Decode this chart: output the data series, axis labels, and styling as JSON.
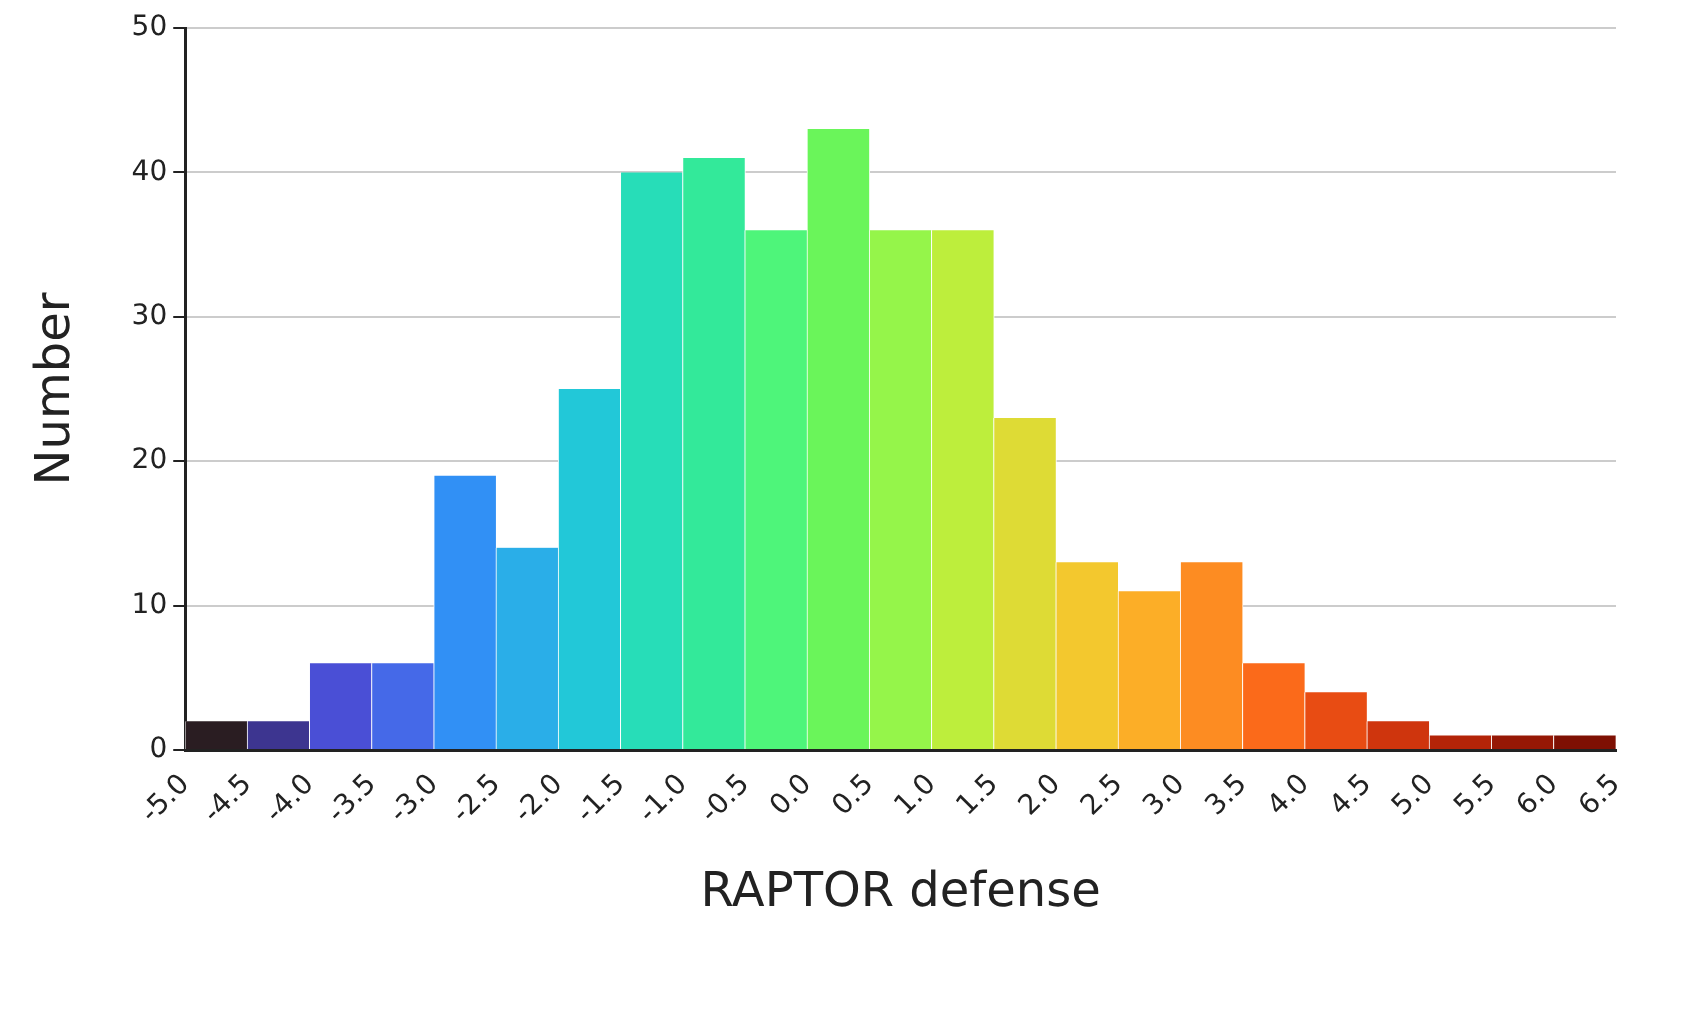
{
  "chart_data": {
    "type": "histogram",
    "xlabel": "RAPTOR defense",
    "ylabel": "Number",
    "bins": [
      -5,
      -4.5,
      -4,
      -3.5,
      -3,
      -2.5,
      -2,
      -1.5,
      -1,
      -0.5,
      0,
      0.5,
      1,
      1.5,
      2,
      2.5,
      3,
      3.5,
      4,
      4.5,
      5,
      5.5,
      6,
      6.5
    ],
    "values": [
      2,
      2,
      6,
      6,
      19,
      14,
      25,
      40,
      41,
      36,
      43,
      36,
      36,
      23,
      13,
      11,
      13,
      6,
      4,
      2,
      1,
      1,
      1
    ],
    "colors": [
      "#2a1d22",
      "#3d3590",
      "#4a4fd6",
      "#4569e8",
      "#3190f5",
      "#2aaee8",
      "#22c8d8",
      "#27ddb8",
      "#33e99a",
      "#4ef57a",
      "#6af55a",
      "#95f54a",
      "#bdee3c",
      "#dedb35",
      "#f3c82e",
      "#fcae27",
      "#fd8c22",
      "#fb6a1a",
      "#e84c13",
      "#cf350d",
      "#b32408",
      "#961805",
      "#7e1003"
    ],
    "xlim": [
      -5,
      6.5
    ],
    "xticks": [
      {
        "value": -5,
        "label": "-5.0"
      },
      {
        "value": -4.5,
        "label": "-4.5"
      },
      {
        "value": -4,
        "label": "-4.0"
      },
      {
        "value": -3.5,
        "label": "-3.5"
      },
      {
        "value": -3,
        "label": "-3.0"
      },
      {
        "value": -2.5,
        "label": "-2.5"
      },
      {
        "value": -2,
        "label": "-2.0"
      },
      {
        "value": -1.5,
        "label": "-1.5"
      },
      {
        "value": -1,
        "label": "-1.0"
      },
      {
        "value": -0.5,
        "label": "-0.5"
      },
      {
        "value": 0,
        "label": "0.0"
      },
      {
        "value": 0.5,
        "label": "0.5"
      },
      {
        "value": 1,
        "label": "1.0"
      },
      {
        "value": 1.5,
        "label": "1.5"
      },
      {
        "value": 2,
        "label": "2.0"
      },
      {
        "value": 2.5,
        "label": "2.5"
      },
      {
        "value": 3,
        "label": "3.0"
      },
      {
        "value": 3.5,
        "label": "3.5"
      },
      {
        "value": 4,
        "label": "4.0"
      },
      {
        "value": 4.5,
        "label": "4.5"
      },
      {
        "value": 5,
        "label": "5.0"
      },
      {
        "value": 5.5,
        "label": "5.5"
      },
      {
        "value": 6,
        "label": "6.0"
      },
      {
        "value": 6.5,
        "label": "6.5"
      }
    ],
    "ylim": [
      0,
      50
    ],
    "yticks": [
      0,
      10,
      20,
      30,
      40,
      50
    ],
    "grid": "y"
  }
}
